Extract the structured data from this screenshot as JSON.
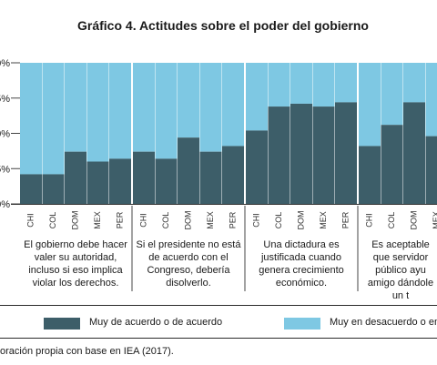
{
  "chart_data": {
    "type": "bar",
    "title": "Gráfico 4. Actitudes sobre el poder del gobierno",
    "y_tick_labels": [
      "0%",
      "5%",
      "0%",
      "5%",
      "0%"
    ],
    "ylim": [
      0,
      100
    ],
    "groups": [
      {
        "label": "El gobierno debe hacer valer su autoridad, incluso si eso implica violar los derechos.",
        "categories": [
          "CHI",
          "COL",
          "DOM",
          "MEX",
          "PER"
        ],
        "values": [
          21,
          21,
          37,
          30,
          32
        ]
      },
      {
        "label": "Si el presidente no está de acuerdo con el Congreso, debería disolverlo.",
        "categories": [
          "CHI",
          "COL",
          "DOM",
          "MEX",
          "PER"
        ],
        "values": [
          37,
          32,
          47,
          37,
          41
        ]
      },
      {
        "label": "Una dictadura es justificada cuando genera crecimiento económico.",
        "categories": [
          "CHI",
          "COL",
          "DOM",
          "MEX",
          "PER"
        ],
        "values": [
          52,
          69,
          71,
          69,
          72
        ]
      },
      {
        "label": "Es aceptable que servidor público ayu amigo dándole un t",
        "categories": [
          "CHI",
          "COL",
          "DOM",
          "MEX"
        ],
        "values": [
          41,
          56,
          72,
          48
        ]
      }
    ],
    "series": [
      {
        "name": "Muy de acuerdo o de acuerdo",
        "color": "#3d5e69"
      },
      {
        "name": "Muy en desacuerdo o en de",
        "color": "#7ec8e3"
      }
    ]
  },
  "source_text": "oración propia con base en IEA (2017)."
}
